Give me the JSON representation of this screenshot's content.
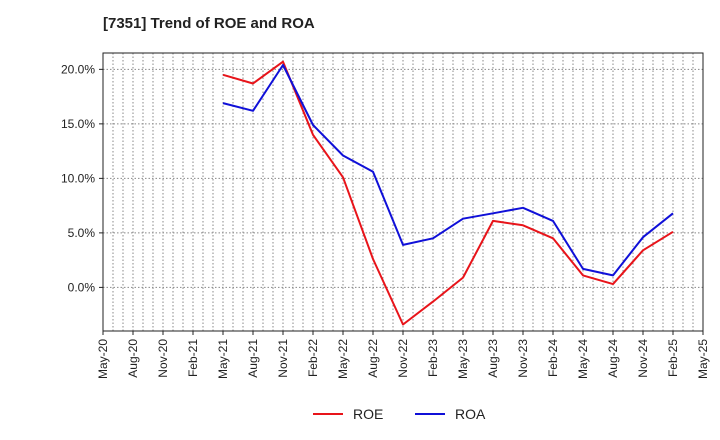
{
  "chart_data": {
    "type": "line",
    "title": "[7351]  Trend of ROE and ROA",
    "xlabel": "",
    "ylabel": "",
    "x_ticks": [
      "May-20",
      "Aug-20",
      "Nov-20",
      "Feb-21",
      "May-21",
      "Aug-21",
      "Nov-21",
      "Feb-22",
      "May-22",
      "Aug-22",
      "Nov-22",
      "Feb-23",
      "May-23",
      "Aug-23",
      "Nov-23",
      "Feb-24",
      "May-24",
      "Aug-24",
      "Nov-24",
      "Feb-25",
      "May-25"
    ],
    "x": [
      "May-21",
      "Aug-21",
      "Nov-21",
      "Feb-22",
      "May-22",
      "Aug-22",
      "Nov-22",
      "Feb-23",
      "May-23",
      "Aug-23",
      "Nov-23",
      "Feb-24",
      "May-24",
      "Aug-24",
      "Nov-24",
      "Feb-25"
    ],
    "ylim": [
      -4,
      21.5
    ],
    "y_ticks": [
      0,
      5,
      10,
      15,
      20
    ],
    "y_tick_labels": [
      "0.0%",
      "5.0%",
      "10.0%",
      "15.0%",
      "20.0%"
    ],
    "grid": true,
    "legend_position": "bottom-center",
    "series": [
      {
        "name": "ROE",
        "color": "#e8141a",
        "values": [
          19.5,
          18.7,
          20.7,
          14.0,
          10.1,
          2.6,
          -3.4,
          -1.3,
          0.9,
          6.1,
          5.7,
          4.5,
          1.1,
          0.3,
          3.4,
          5.1
        ]
      },
      {
        "name": "ROA",
        "color": "#1010d8",
        "values": [
          16.9,
          16.2,
          20.4,
          14.9,
          12.1,
          10.6,
          3.9,
          4.5,
          6.3,
          6.8,
          7.3,
          6.1,
          1.7,
          1.1,
          4.6,
          6.8
        ]
      }
    ]
  }
}
